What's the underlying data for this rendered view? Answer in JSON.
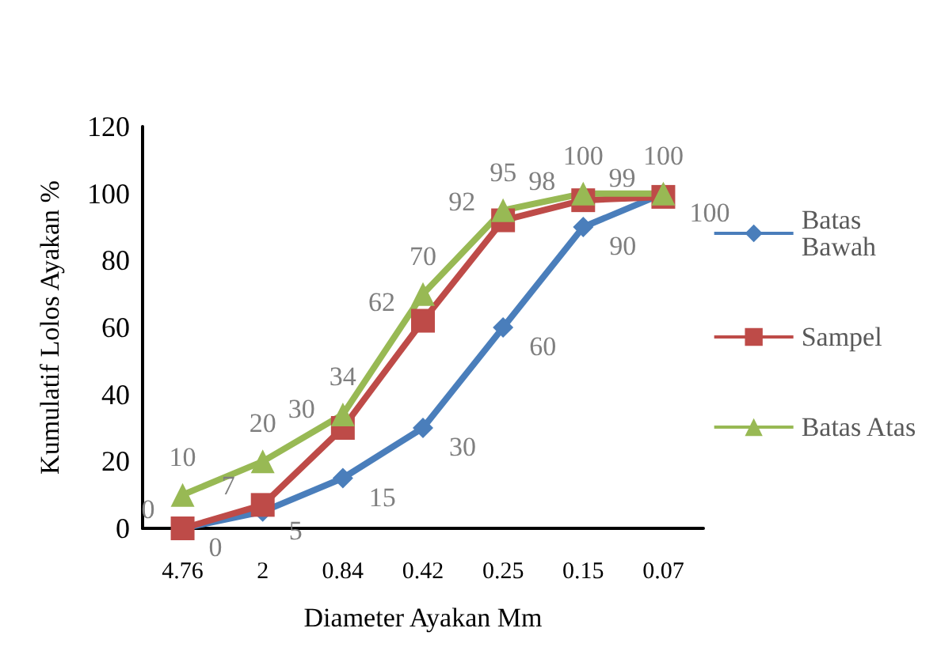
{
  "chart_data": {
    "type": "line",
    "xlabel": "Diameter Ayakan Mm",
    "ylabel": "Kumulatif Lolos Ayakan %",
    "categories": [
      "4.76",
      "2",
      "0.84",
      "0.42",
      "0.25",
      "0.15",
      "0.07"
    ],
    "series": [
      {
        "name": "Batas Bawah",
        "color": "#4a7ebb",
        "marker": "diamond",
        "values": [
          0,
          5,
          15,
          30,
          60,
          90,
          100
        ]
      },
      {
        "name": "Sampel",
        "color": "#be4b48",
        "marker": "square",
        "values": [
          0,
          7,
          30,
          62,
          92,
          98,
          99
        ]
      },
      {
        "name": "Batas Atas",
        "color": "#98b954",
        "marker": "triangle",
        "values": [
          10,
          20,
          34,
          70,
          95,
          100,
          100
        ]
      }
    ],
    "ylim": [
      0,
      120
    ],
    "yticks": [
      0,
      20,
      40,
      60,
      80,
      100,
      120
    ],
    "grid": false,
    "legend": "right",
    "data_labels": true,
    "line_style": "solid"
  }
}
